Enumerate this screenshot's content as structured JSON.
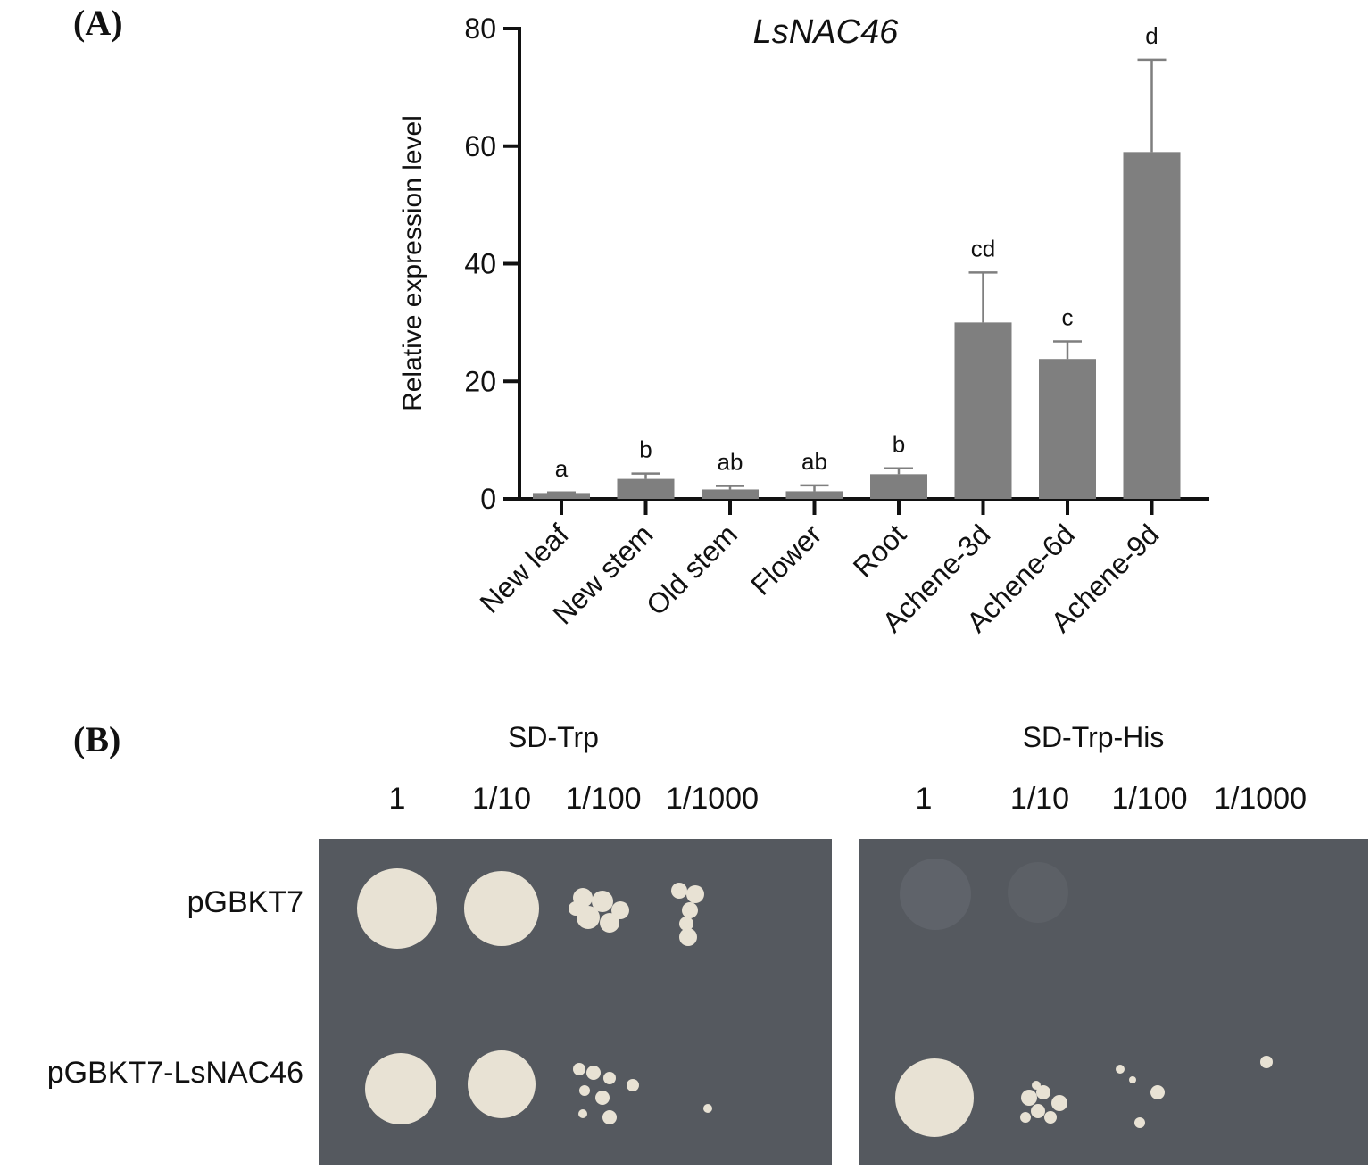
{
  "panels": {
    "a_label": "(A)",
    "b_label": "(B)"
  },
  "chart_data": {
    "type": "bar",
    "title": "LsNAC46",
    "xlabel": "",
    "ylabel": "Relative expression level",
    "ylim": [
      0,
      80
    ],
    "yticks": [
      0,
      20,
      40,
      60,
      80
    ],
    "grid": false,
    "categories": [
      "New leaf",
      "New stem",
      "Old stem",
      "Flower",
      "Root",
      "Achene-3d",
      "Achene-6d",
      "Achene-9d"
    ],
    "values": [
      1.0,
      3.4,
      1.6,
      1.3,
      4.2,
      30.0,
      23.8,
      59.0
    ],
    "errors": [
      0.1,
      0.9,
      0.6,
      1.0,
      1.0,
      8.5,
      3.0,
      15.7
    ],
    "significance": [
      "a",
      "b",
      "ab",
      "ab",
      "b",
      "cd",
      "c",
      "d"
    ],
    "bar_color": "#7f7f7f"
  },
  "assay": {
    "plates": [
      {
        "title": "SD-Trp",
        "dilutions": [
          "1",
          "1/10",
          "1/100",
          "1/1000"
        ]
      },
      {
        "title": "SD-Trp-His",
        "dilutions": [
          "1",
          "1/10",
          "1/100",
          "1/1000"
        ]
      }
    ],
    "rows": [
      "pGBKT7",
      "pGBKT7-LsNAC46"
    ],
    "plate_color": "#55595f",
    "colony_color": "#e8e2d4"
  }
}
